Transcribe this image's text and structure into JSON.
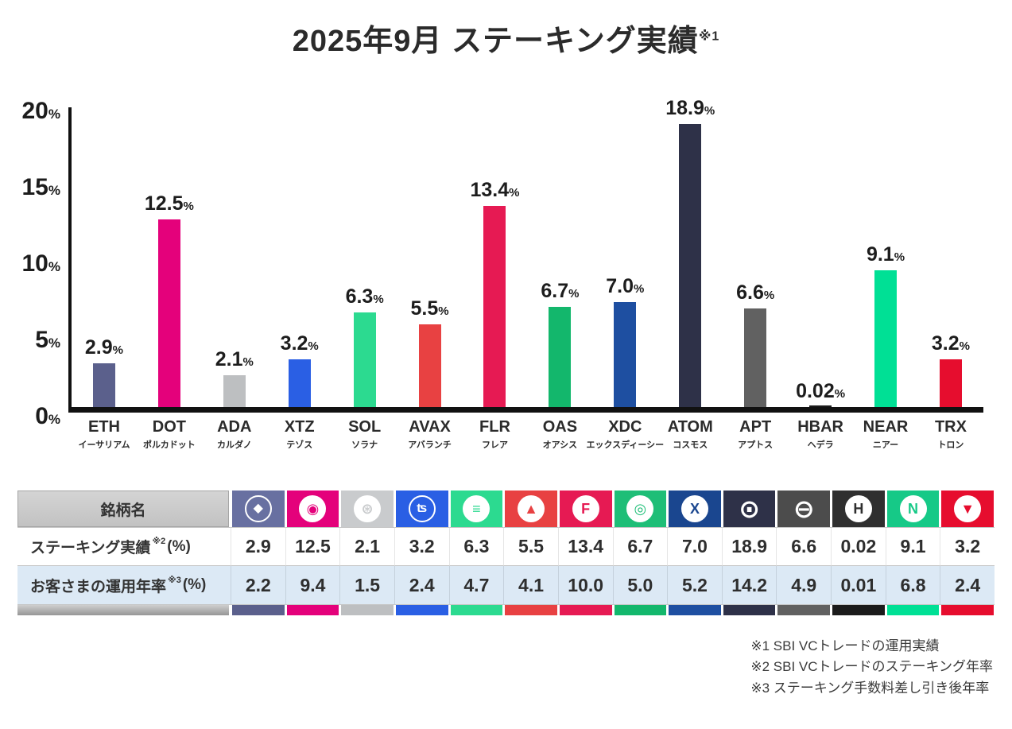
{
  "title": {
    "text": "2025年9月 ステーキング実績",
    "note_ref": "※1"
  },
  "chart_data": {
    "type": "bar",
    "title": "2025年9月 ステーキング実績",
    "title_note": "※1",
    "unit": "%",
    "ymax": 20,
    "yticks": [
      0,
      5,
      10,
      15,
      20
    ],
    "grid": false,
    "categories": [
      "ETH",
      "DOT",
      "ADA",
      "XTZ",
      "SOL",
      "AVAX",
      "FLR",
      "OAS",
      "XDC",
      "ATOM",
      "APT",
      "HBAR",
      "NEAR",
      "TRX"
    ],
    "category_names_ja": [
      "イーサリアム",
      "ポルカドット",
      "カルダノ",
      "テゾス",
      "ソラナ",
      "アバランチ",
      "フレア",
      "オアシス",
      "エックスディーシー",
      "コスモス",
      "アプトス",
      "ヘデラ",
      "ニアー",
      "トロン"
    ],
    "values": [
      2.9,
      12.5,
      2.1,
      3.2,
      6.3,
      5.5,
      13.4,
      6.7,
      7.0,
      18.9,
      6.6,
      0.02,
      9.1,
      3.2
    ],
    "colors": [
      "#5B608C",
      "#E4017B",
      "#BDBFC1",
      "#2A5FE4",
      "#2CDA90",
      "#E84142",
      "#E61A53",
      "#13B76C",
      "#1E4FA1",
      "#2E3148",
      "#616161",
      "#1B1B1B",
      "#00E095",
      "#E60D2E"
    ]
  },
  "coins": [
    {
      "ticker": "ETH",
      "name_ja": "イーサリアム",
      "staking": "2.9",
      "rate": "2.2",
      "color": "#5B608C",
      "icon_bg": "#6870A1",
      "icon": "eth-icon",
      "icon_glyph": "◆",
      "icon_style": "outline"
    },
    {
      "ticker": "DOT",
      "name_ja": "ポルカドット",
      "staking": "12.5",
      "rate": "9.4",
      "color": "#E4017B",
      "icon_bg": "#E4017B",
      "icon": "dot-icon",
      "icon_glyph": "◉",
      "icon_style": "solid"
    },
    {
      "ticker": "ADA",
      "name_ja": "カルダノ",
      "staking": "2.1",
      "rate": "1.5",
      "color": "#BDBFC1",
      "icon_bg": "#C9CBCD",
      "icon": "ada-icon",
      "icon_glyph": "⊛",
      "icon_style": "solid"
    },
    {
      "ticker": "XTZ",
      "name_ja": "テゾス",
      "staking": "3.2",
      "rate": "2.4",
      "color": "#2A5FE4",
      "icon_bg": "#2A5FE4",
      "icon": "xtz-icon",
      "icon_glyph": "ʦ",
      "icon_style": "outline"
    },
    {
      "ticker": "SOL",
      "name_ja": "ソラナ",
      "staking": "6.3",
      "rate": "4.7",
      "color": "#2CDA90",
      "icon_bg": "#2CDA90",
      "icon": "sol-icon",
      "icon_glyph": "≡",
      "icon_style": "solid"
    },
    {
      "ticker": "AVAX",
      "name_ja": "アバランチ",
      "staking": "5.5",
      "rate": "4.1",
      "color": "#E84142",
      "icon_bg": "#E84142",
      "icon": "avax-icon",
      "icon_glyph": "▲",
      "icon_style": "solid"
    },
    {
      "ticker": "FLR",
      "name_ja": "フレア",
      "staking": "13.4",
      "rate": "10.0",
      "color": "#E61A53",
      "icon_bg": "#E61A53",
      "icon": "flr-icon",
      "icon_glyph": "F",
      "icon_style": "solid"
    },
    {
      "ticker": "OAS",
      "name_ja": "オアシス",
      "staking": "6.7",
      "rate": "5.0",
      "color": "#13B76C",
      "icon_bg": "#1EBE77",
      "icon": "oas-icon",
      "icon_glyph": "◎",
      "icon_style": "solid"
    },
    {
      "ticker": "XDC",
      "name_ja": "エックスディーシー",
      "staking": "7.0",
      "rate": "5.2",
      "color": "#1E4FA1",
      "icon_bg": "#1A468F",
      "icon": "xdc-icon",
      "icon_glyph": "X",
      "icon_style": "solid"
    },
    {
      "ticker": "ATOM",
      "name_ja": "コスモス",
      "staking": "18.9",
      "rate": "14.2",
      "color": "#2E3148",
      "icon_bg": "#2E3148",
      "icon": "atom-icon",
      "icon_glyph": "⊙",
      "icon_style": "plain"
    },
    {
      "ticker": "APT",
      "name_ja": "アプトス",
      "staking": "6.6",
      "rate": "4.9",
      "color": "#616161",
      "icon_bg": "#4C4C4C",
      "icon": "apt-icon",
      "icon_glyph": "⊖",
      "icon_style": "plain"
    },
    {
      "ticker": "HBAR",
      "name_ja": "ヘデラ",
      "staking": "0.02",
      "rate": "0.01",
      "color": "#1B1B1B",
      "icon_bg": "#2F2F2F",
      "icon": "hbar-icon",
      "icon_glyph": "H",
      "icon_style": "solid"
    },
    {
      "ticker": "NEAR",
      "name_ja": "ニアー",
      "staking": "9.1",
      "rate": "6.8",
      "color": "#00E095",
      "icon_bg": "#16C987",
      "icon": "near-icon",
      "icon_glyph": "N",
      "icon_style": "solid"
    },
    {
      "ticker": "TRX",
      "name_ja": "トロン",
      "staking": "3.2",
      "rate": "2.4",
      "color": "#E60D2E",
      "icon_bg": "#E60D2E",
      "icon": "trx-icon",
      "icon_glyph": "▼",
      "icon_style": "solid"
    }
  ],
  "table": {
    "brand_header": "銘柄名",
    "rows": [
      {
        "label": "ステーキング実績",
        "note": "※2",
        "unit": "(%)",
        "key": "staking"
      },
      {
        "label": "お客さまの運用年率",
        "note": "※3",
        "unit": "(%)",
        "key": "rate"
      }
    ]
  },
  "notes": [
    "※1 SBI VCトレードの運用実績",
    "※2 SBI VCトレードのステーキング年率",
    "※3 ステーキング手数料差し引き後年率"
  ]
}
